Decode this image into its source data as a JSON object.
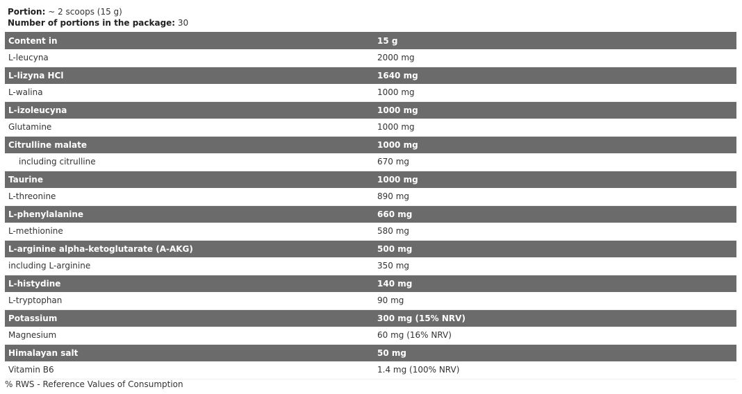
{
  "portion": {
    "label": "Portion:",
    "value": " ~ 2 scoops (15 g)"
  },
  "portions_count": {
    "label": "Number of portions in the package:",
    "value": " 30"
  },
  "table": {
    "header": [
      "Content in",
      "15 g"
    ],
    "rows": [
      {
        "name": "L-leucyna",
        "value": "2000 mg"
      },
      {
        "name": "L-lizyna HCl",
        "value": "1640 mg"
      },
      {
        "name": "L-walina",
        "value": "1000 mg"
      },
      {
        "name": "L-izoleucyna",
        "value": "1000 mg"
      },
      {
        "name": "Glutamine",
        "value": "1000 mg"
      },
      {
        "name": "Citrulline malate",
        "value": "1000 mg"
      },
      {
        "name": "including citrulline",
        "value": "670 mg",
        "indent": true
      },
      {
        "name": "Taurine",
        "value": "1000 mg"
      },
      {
        "name": "L-threonine",
        "value": "890 mg"
      },
      {
        "name": "L-phenylalanine",
        "value": "660 mg"
      },
      {
        "name": "L-methionine",
        "value": "580 mg"
      },
      {
        "name": "L-arginine alpha-ketoglutarate (A-AKG)",
        "value": "500 mg"
      },
      {
        "name": "including L-arginine",
        "value": "350 mg"
      },
      {
        "name": "L-histydine",
        "value": "140 mg"
      },
      {
        "name": "L-tryptophan",
        "value": "90 mg"
      },
      {
        "name": "Potassium",
        "value": "300 mg (15% NRV)"
      },
      {
        "name": "Magnesium",
        "value": "60 mg (16% NRV)"
      },
      {
        "name": "Himalayan salt",
        "value": "50 mg"
      },
      {
        "name": "Vitamin B6",
        "value": "1.4 mg (100% NRV)"
      }
    ]
  },
  "footnote": "% RWS - Reference Values of Consumption",
  "colors": {
    "dark_row": "#6b6b6b",
    "light_row": "#ffffff"
  }
}
